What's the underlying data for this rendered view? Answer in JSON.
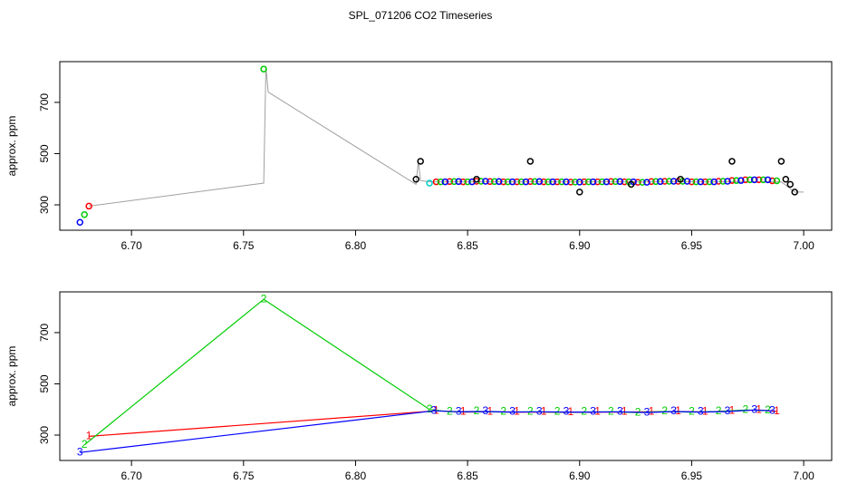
{
  "chart_data": [
    {
      "type": "scatter",
      "title": "SPL_071206  CO2 Timeseries",
      "ylabel": "approx. ppm",
      "xlim": [
        6.668,
        7.0125
      ],
      "ylim": [
        201,
        859
      ],
      "xticks": [
        {
          "value": 6.7,
          "label": "6.70"
        },
        {
          "value": 6.75,
          "label": "6.75"
        },
        {
          "value": 6.8,
          "label": "6.80"
        },
        {
          "value": 6.85,
          "label": "6.85"
        },
        {
          "value": 6.9,
          "label": "6.90"
        },
        {
          "value": 6.95,
          "label": "6.95"
        },
        {
          "value": 7.0,
          "label": "7.00"
        }
      ],
      "yticks": [
        300,
        500,
        700
      ],
      "series": [
        {
          "style": "line",
          "color": "#a0a0a0",
          "x": [
            6.681,
            6.759,
            6.76,
            6.761,
            6.827,
            6.828,
            6.829,
            6.833,
            6.99,
            6.996,
            7.0
          ],
          "values": [
            295,
            385,
            840,
            740,
            380,
            470,
            395,
            390,
            390,
            350,
            350
          ]
        },
        {
          "style": "points",
          "color": "#ff0000",
          "x": [
            6.681,
            6.836,
            6.842,
            6.848,
            6.854,
            6.86,
            6.866,
            6.872,
            6.878,
            6.884,
            6.89,
            6.896,
            6.902,
            6.908,
            6.914,
            6.92,
            6.926,
            6.932,
            6.938,
            6.944,
            6.95,
            6.956,
            6.962,
            6.968,
            6.974,
            6.98,
            6.986
          ],
          "values": [
            295,
            390,
            391,
            390,
            392,
            391,
            390,
            390,
            391,
            390,
            390,
            389,
            390,
            390,
            391,
            390,
            388,
            391,
            392,
            392,
            390,
            390,
            392,
            395,
            398,
            398,
            394
          ]
        },
        {
          "style": "points",
          "color": "#00cc00",
          "x": [
            6.679,
            6.759,
            6.838,
            6.844,
            6.85,
            6.856,
            6.862,
            6.868,
            6.874,
            6.88,
            6.886,
            6.892,
            6.898,
            6.904,
            6.91,
            6.916,
            6.922,
            6.928,
            6.934,
            6.94,
            6.946,
            6.952,
            6.958,
            6.964,
            6.97,
            6.976,
            6.982,
            6.988
          ],
          "values": [
            262,
            830,
            390,
            391,
            390,
            392,
            391,
            390,
            390,
            391,
            390,
            390,
            389,
            390,
            390,
            391,
            390,
            388,
            391,
            392,
            392,
            390,
            390,
            392,
            395,
            398,
            398,
            394
          ]
        },
        {
          "style": "points",
          "color": "#0000ff",
          "x": [
            6.677,
            6.84,
            6.846,
            6.852,
            6.858,
            6.864,
            6.87,
            6.876,
            6.882,
            6.888,
            6.894,
            6.9,
            6.906,
            6.912,
            6.918,
            6.924,
            6.93,
            6.936,
            6.942,
            6.948,
            6.954,
            6.96,
            6.966,
            6.972,
            6.978,
            6.984
          ],
          "values": [
            232,
            390,
            391,
            390,
            392,
            391,
            390,
            390,
            391,
            390,
            390,
            389,
            390,
            390,
            391,
            390,
            388,
            391,
            392,
            392,
            390,
            390,
            392,
            395,
            398,
            398
          ]
        },
        {
          "style": "points",
          "color": "#000000",
          "x": [
            6.827,
            6.829,
            6.854,
            6.878,
            6.9,
            6.923,
            6.945,
            6.968,
            6.99,
            6.992,
            6.994,
            6.996
          ],
          "values": [
            400,
            470,
            400,
            470,
            350,
            380,
            400,
            470,
            470,
            400,
            380,
            350
          ]
        },
        {
          "style": "points",
          "color": "#00cccc",
          "x": [
            6.833
          ],
          "values": [
            385
          ]
        }
      ]
    },
    {
      "type": "line",
      "ylabel": "approx. ppm",
      "xlim": [
        6.668,
        7.0125
      ],
      "ylim": [
        201,
        859
      ],
      "xticks": [
        {
          "value": 6.7,
          "label": "6.70"
        },
        {
          "value": 6.75,
          "label": "6.75"
        },
        {
          "value": 6.8,
          "label": "6.80"
        },
        {
          "value": 6.85,
          "label": "6.85"
        },
        {
          "value": 6.9,
          "label": "6.90"
        },
        {
          "value": 6.95,
          "label": "6.95"
        },
        {
          "value": 7.0,
          "label": "7.00"
        }
      ],
      "yticks": [
        300,
        500,
        700
      ],
      "series": [
        {
          "name": "1",
          "color": "#ff0000",
          "x": [
            6.681,
            6.836,
            6.848,
            6.86,
            6.872,
            6.884,
            6.896,
            6.908,
            6.92,
            6.932,
            6.944,
            6.956,
            6.968,
            6.98,
            6.988
          ],
          "values": [
            295,
            395,
            390,
            391,
            390,
            390,
            389,
            390,
            390,
            391,
            392,
            390,
            395,
            398,
            392
          ]
        },
        {
          "name": "2",
          "color": "#00cc00",
          "x": [
            6.679,
            6.759,
            6.833,
            6.842,
            6.854,
            6.866,
            6.878,
            6.89,
            6.902,
            6.914,
            6.926,
            6.938,
            6.95,
            6.962,
            6.974,
            6.984
          ],
          "values": [
            262,
            830,
            400,
            391,
            392,
            390,
            391,
            390,
            390,
            391,
            388,
            392,
            390,
            392,
            398,
            396
          ]
        },
        {
          "name": "3",
          "color": "#0000ff",
          "x": [
            6.677,
            6.835,
            6.846,
            6.858,
            6.87,
            6.882,
            6.894,
            6.906,
            6.918,
            6.93,
            6.942,
            6.954,
            6.966,
            6.978,
            6.986
          ],
          "values": [
            232,
            395,
            391,
            392,
            390,
            391,
            390,
            390,
            391,
            388,
            392,
            390,
            392,
            398,
            394
          ]
        }
      ]
    }
  ]
}
